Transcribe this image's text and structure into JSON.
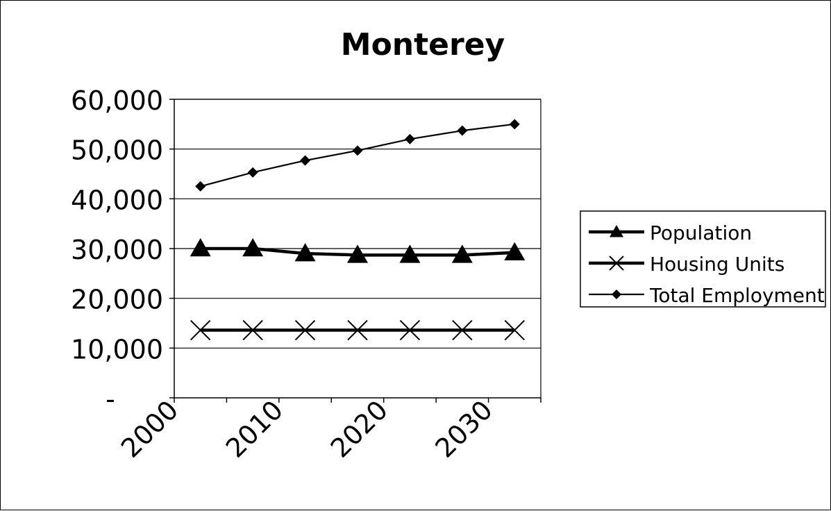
{
  "chart_data": {
    "type": "line",
    "title": "Monterey",
    "xlabel": "",
    "ylabel": "",
    "x": [
      2000,
      2005,
      2010,
      2015,
      2020,
      2025,
      2030
    ],
    "x_tick_labels": [
      "2000",
      "2010",
      "2020",
      "2030"
    ],
    "y_tick_labels": [
      "-",
      "10,000",
      "20,000",
      "30,000",
      "40,000",
      "50,000",
      "60,000"
    ],
    "ylim": [
      0,
      60000
    ],
    "grid": "horizontal",
    "legend_position": "right",
    "series": [
      {
        "name": "Population",
        "marker": "triangle",
        "color": "#000000",
        "values": [
          30000,
          30000,
          29000,
          28700,
          28700,
          28700,
          29200
        ]
      },
      {
        "name": "Housing Units",
        "marker": "x",
        "color": "#000000",
        "values": [
          13600,
          13600,
          13600,
          13600,
          13600,
          13600,
          13600
        ]
      },
      {
        "name": "Total Employment",
        "marker": "diamond",
        "color": "#000000",
        "values": [
          42500,
          45300,
          47700,
          49700,
          52000,
          53700,
          55000
        ]
      }
    ]
  }
}
